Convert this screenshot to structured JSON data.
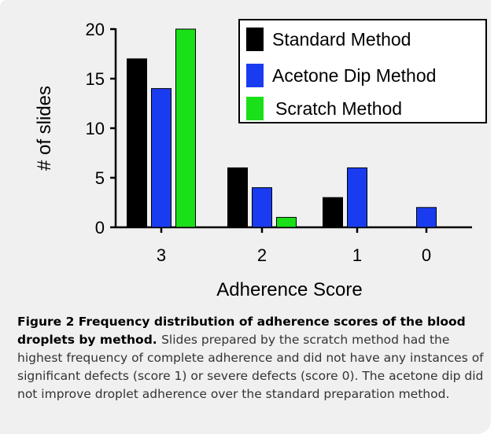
{
  "chart_data": {
    "type": "bar",
    "xlabel": "Adherence Score",
    "ylabel": "# of slides",
    "categories": [
      "3",
      "2",
      "1",
      "0"
    ],
    "ylim": [
      0,
      20
    ],
    "yticks": [
      0,
      5,
      10,
      15,
      20
    ],
    "legend_position": "top-right",
    "series": [
      {
        "name": "Standard Method",
        "color": "#000000",
        "values": [
          17,
          6,
          3,
          0
        ]
      },
      {
        "name": "Acetone Dip Method",
        "color": "#1a3cf0",
        "values": [
          14,
          4,
          6,
          2
        ]
      },
      {
        "name": "Scratch Method",
        "color": "#1ae01a",
        "values": [
          20,
          1,
          0,
          0
        ]
      }
    ]
  },
  "caption": {
    "heading": "Figure 2 Frequency distribution of adherence scores of the blood droplets by method.",
    "body": "Slides prepared by the scratch method had the highest frequency of complete adherence and did not have any instances of significant defects (score 1) or severe defects (score 0). The acetone dip did not improve droplet adherence over the standard preparation method."
  },
  "colors": {
    "frame_background": "#f0f0f0",
    "caption_text": "#333333"
  }
}
